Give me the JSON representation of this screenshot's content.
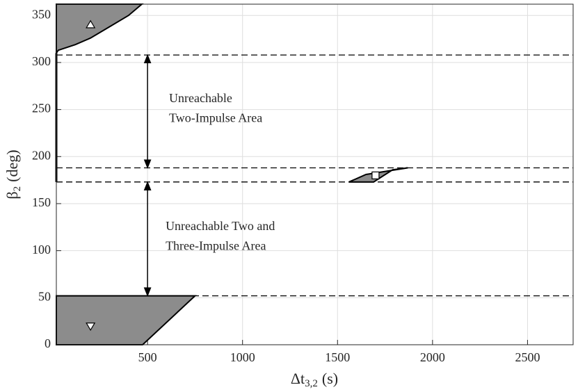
{
  "chart_data": {
    "type": "region",
    "xlabel": {
      "main": "Δt",
      "sub": "3,2",
      "unit": "(s)"
    },
    "ylabel": {
      "main": "β",
      "sub": "2",
      "unit": "(deg)"
    },
    "xlim": [
      20,
      2740
    ],
    "ylim": [
      0,
      362
    ],
    "xticks": [
      500,
      1000,
      1500,
      2000,
      2500
    ],
    "yticks": [
      0,
      50,
      100,
      150,
      200,
      250,
      300,
      350
    ],
    "grid": true,
    "region_color": "#8c8c8c",
    "regions": [
      {
        "x": [
          20,
          30,
          120,
          200,
          300,
          400,
          470,
          20
        ],
        "y": [
          310,
          313,
          319,
          326,
          338,
          350,
          362,
          362
        ]
      },
      {
        "x": [
          20,
          20,
          750,
          474
        ],
        "y": [
          0,
          52,
          52,
          0
        ]
      },
      {
        "x": [
          1560,
          1650,
          1870,
          1790,
          1690
        ],
        "y": [
          173,
          181,
          188,
          186,
          173
        ]
      }
    ],
    "vlines": [
      {
        "x": 20,
        "y": [
          173,
          310
        ]
      }
    ],
    "hlines": [
      308,
      188,
      173,
      52
    ],
    "markers": [
      {
        "shape": "triangle-up",
        "x": 200,
        "y": 340
      },
      {
        "shape": "triangle-down",
        "x": 200,
        "y": 20
      },
      {
        "shape": "square",
        "x": 1700,
        "y": 180
      }
    ],
    "arrows": [
      {
        "x": 500,
        "y": [
          308,
          188
        ]
      },
      {
        "x": 500,
        "y": [
          173,
          52
        ]
      }
    ],
    "annotations": [
      {
        "x": 613,
        "y": [
          261,
          240
        ],
        "lines": [
          "Unreachable",
          "Two-Impulse Area"
        ]
      },
      {
        "x": 595,
        "y": [
          125,
          104
        ],
        "lines": [
          "Unreachable Two and",
          "Three-Impulse Area"
        ]
      }
    ]
  }
}
